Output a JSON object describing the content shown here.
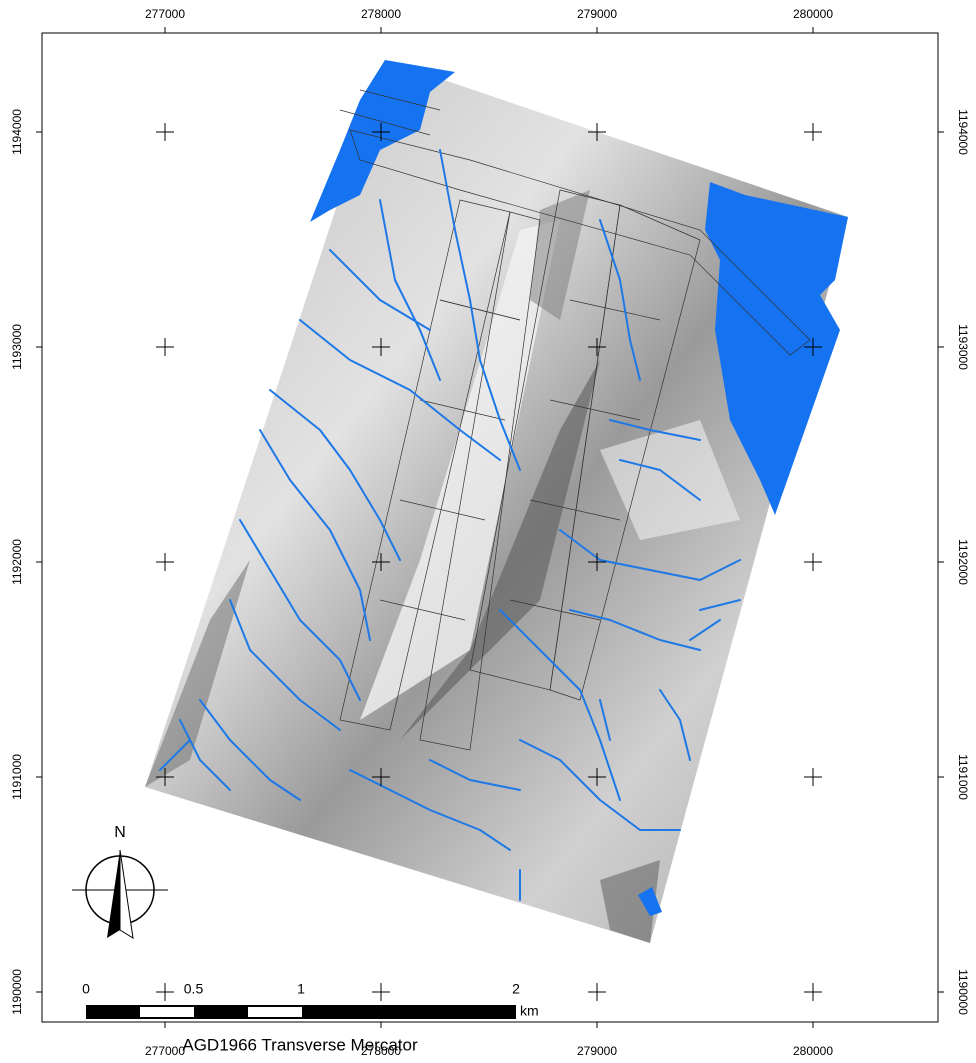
{
  "x_axis": {
    "ticks": [
      277000,
      278000,
      279000,
      280000
    ]
  },
  "y_axis": {
    "ticks": [
      1194000,
      1193000,
      1192000,
      1191000,
      1190000
    ]
  },
  "north_arrow": {
    "label": "N"
  },
  "scale_bar": {
    "labels": [
      0,
      0.5,
      1,
      2
    ],
    "unit": "km"
  },
  "projection": "AGD1966 Transverse Mercator"
}
